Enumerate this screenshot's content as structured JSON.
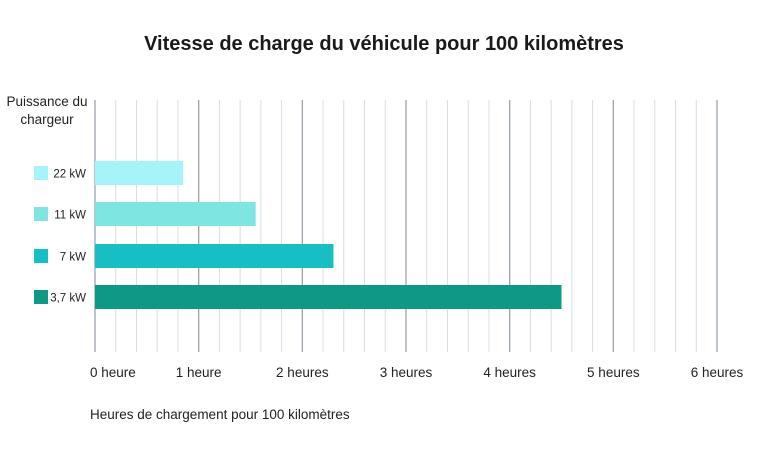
{
  "chart_data": {
    "type": "bar",
    "orientation": "horizontal",
    "title": "Vitesse de charge du véhicule pour 100 kilomètres",
    "ylabel": "Puissance du chargeur",
    "xlabel": "Heures de chargement pour 100 kilomètres",
    "xlim": [
      0,
      6
    ],
    "x_ticks": [
      0,
      1,
      2,
      3,
      4,
      5,
      6
    ],
    "x_tick_labels": [
      "0 heure",
      "1 heure",
      "2 heures",
      "3 heures",
      "4 heures",
      "5 heures",
      "6 heures"
    ],
    "minor_step": 0.2,
    "grid": true,
    "categories": [
      "22 kW",
      "11 kW",
      "7 kW",
      "3,7 kW"
    ],
    "values": [
      0.85,
      1.55,
      2.3,
      4.5
    ],
    "colors": [
      "#a6f4fa",
      "#7fe5e0",
      "#17bfc5",
      "#0f9884"
    ]
  }
}
